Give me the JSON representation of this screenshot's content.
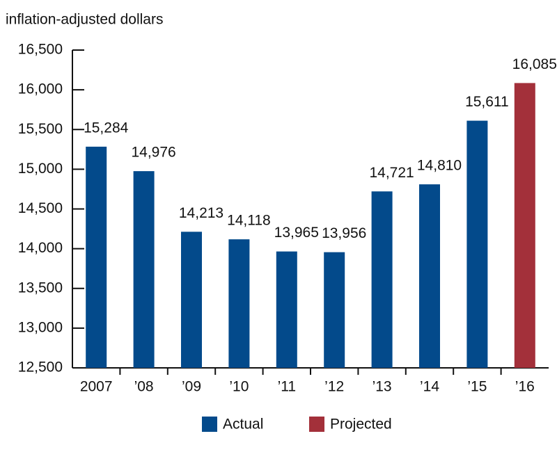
{
  "chart_data": {
    "type": "bar",
    "y_label": "inflation-adjusted dollars",
    "categories": [
      "2007",
      "’08",
      "’09",
      "’10",
      "’11",
      "’12",
      "’13",
      "’14",
      "’15",
      "’16"
    ],
    "series": [
      {
        "name": "Actual",
        "color": "#034a8b",
        "values": [
          15284,
          14976,
          14213,
          14118,
          13965,
          13956,
          14721,
          14810,
          15611,
          null
        ],
        "value_labels": [
          "15,284",
          "14,976",
          "14,213",
          "14,118",
          "13,965",
          "13,956",
          "14,721",
          "14,810",
          "15,611",
          null
        ]
      },
      {
        "name": "Projected",
        "color": "#a3303a",
        "values": [
          null,
          null,
          null,
          null,
          null,
          null,
          null,
          null,
          null,
          16085
        ],
        "value_labels": [
          null,
          null,
          null,
          null,
          null,
          null,
          null,
          null,
          null,
          "16,085"
        ]
      }
    ],
    "ylim": [
      12500,
      16500
    ],
    "yticks": [
      {
        "value": 12500,
        "label": "12,500"
      },
      {
        "value": 13000,
        "label": "13,000"
      },
      {
        "value": 13500,
        "label": "13,500"
      },
      {
        "value": 14000,
        "label": "14,000"
      },
      {
        "value": 14500,
        "label": "14,500"
      },
      {
        "value": 15000,
        "label": "15,000"
      },
      {
        "value": 15500,
        "label": "15,500"
      },
      {
        "value": 16000,
        "label": "16,000"
      },
      {
        "value": 16500,
        "label": "16,500"
      }
    ],
    "grid": false,
    "legend": "bottom"
  }
}
